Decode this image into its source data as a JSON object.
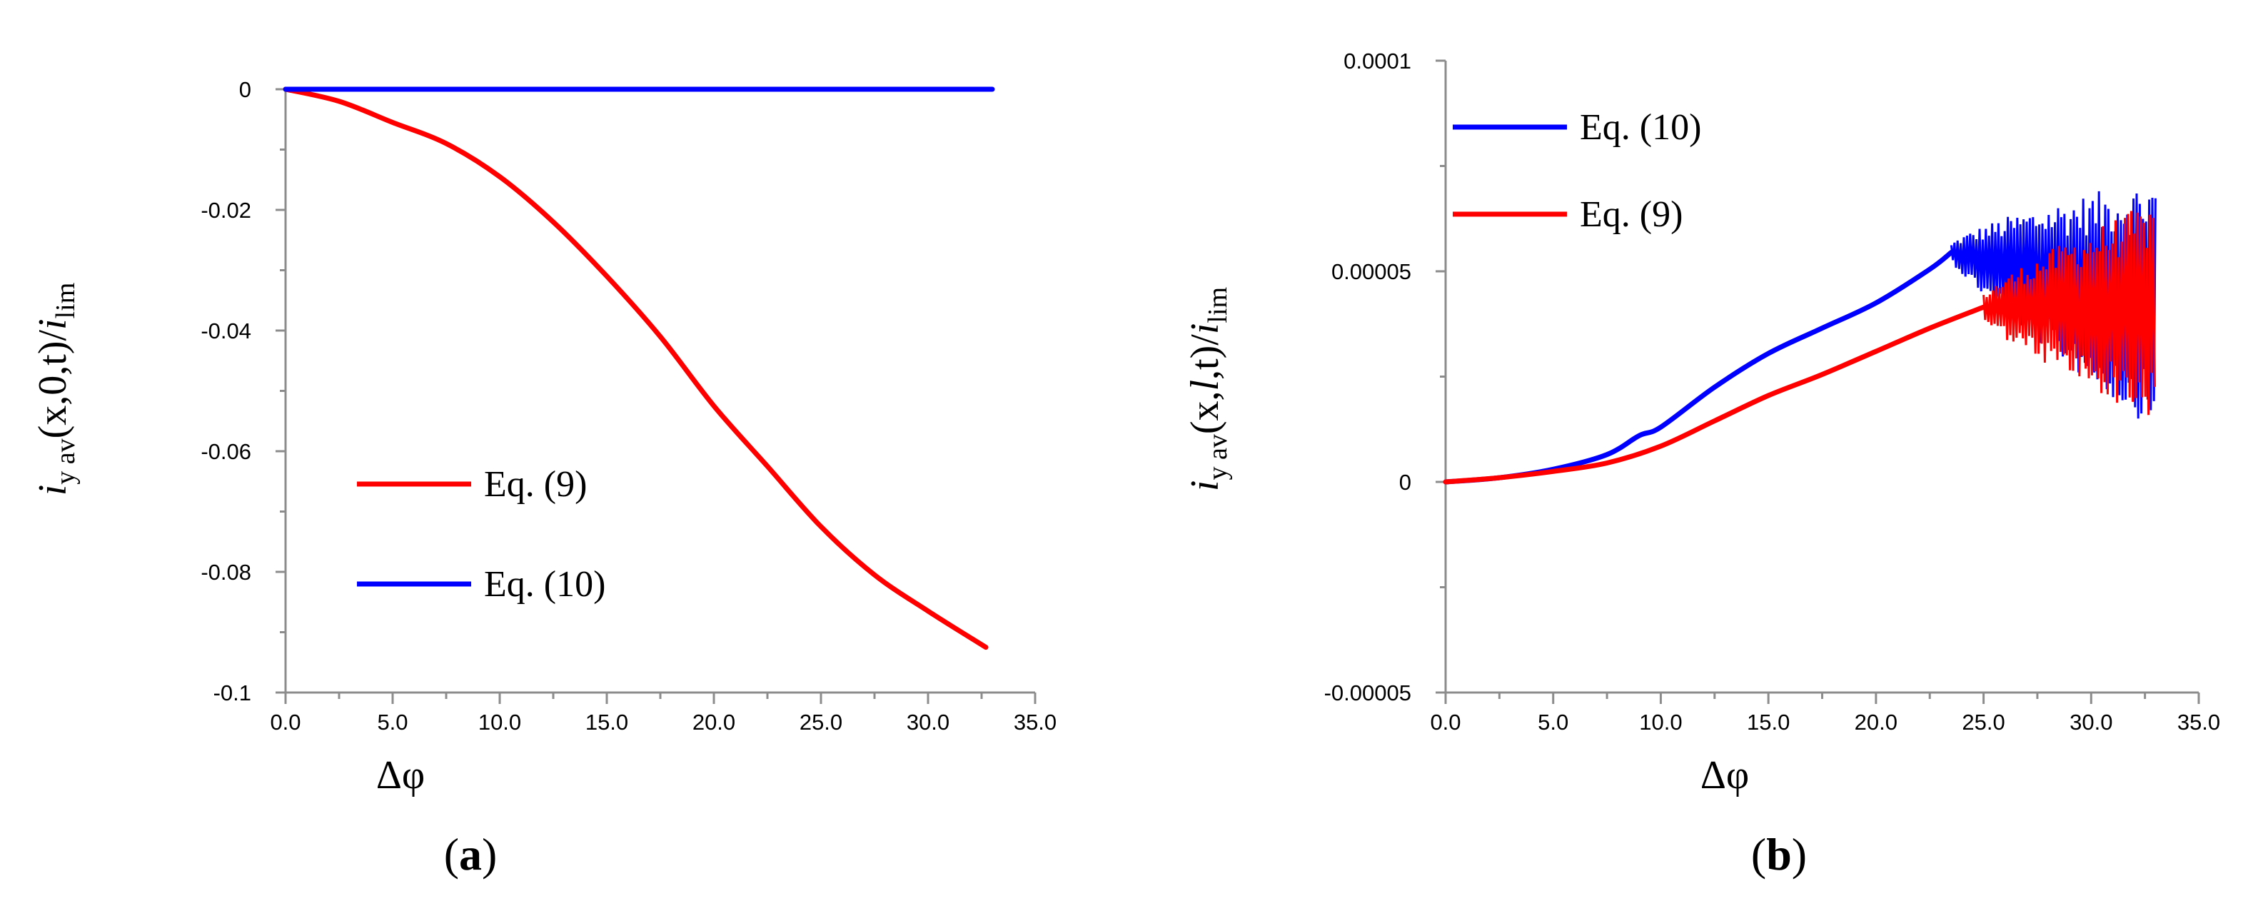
{
  "chart_data": [
    {
      "type": "line",
      "panel_label": "a",
      "xlabel": "Δφ",
      "ylabel": {
        "main": "i",
        "sub": "y av",
        "args": "(x,0,t)/",
        "denom_main": "i",
        "denom_sub": "lim"
      },
      "xlim": [
        0,
        35
      ],
      "ylim": [
        -0.1,
        0
      ],
      "x_ticks": [
        "0.0",
        "5.0",
        "10.0",
        "15.0",
        "20.0",
        "25.0",
        "30.0",
        "35.0"
      ],
      "y_ticks": [
        "0",
        "-0.02",
        "-0.04",
        "-0.06",
        "-0.08",
        "-0.1"
      ],
      "legend": [
        {
          "label": "Eq. (9)",
          "color": "#ff0000"
        },
        {
          "label": "Eq. (10)",
          "color": "#0000ff"
        }
      ],
      "series": [
        {
          "name": "Eq. (9)",
          "color": "#ff0000",
          "x": [
            0,
            2.5,
            5,
            7.5,
            10,
            12.5,
            15,
            17.5,
            20,
            22.5,
            25,
            27.5,
            30,
            32.7
          ],
          "y": [
            0,
            -0.002,
            -0.0055,
            -0.009,
            -0.0145,
            -0.022,
            -0.031,
            -0.041,
            -0.0525,
            -0.0625,
            -0.0725,
            -0.0805,
            -0.0865,
            -0.0925
          ]
        },
        {
          "name": "Eq. (10)",
          "color": "#0000ff",
          "x": [
            0,
            5,
            10,
            15,
            20,
            25,
            30,
            33
          ],
          "y": [
            0,
            0,
            0,
            0,
            0,
            0,
            0,
            0
          ]
        }
      ]
    },
    {
      "type": "line",
      "panel_label": "b",
      "xlabel": "Δφ",
      "ylabel": {
        "main": "i",
        "sub": "y av",
        "args_pre": "(x,",
        "args_ital": "l",
        "args_post": ",t)/",
        "denom_main": "i",
        "denom_sub": "lim"
      },
      "xlim": [
        0,
        35
      ],
      "ylim": [
        -5e-05,
        0.0001
      ],
      "x_ticks": [
        "0.0",
        "5.0",
        "10.0",
        "15.0",
        "20.0",
        "25.0",
        "30.0",
        "35.0"
      ],
      "y_ticks": [
        "0.0001",
        "0.00005",
        "0",
        "-0.00005"
      ],
      "legend": [
        {
          "label": "Eq. (10)",
          "color": "#0000ff"
        },
        {
          "label": "Eq. (9)",
          "color": "#ff0000"
        }
      ],
      "series": [
        {
          "name": "Eq. (10)",
          "color": "#0000ff",
          "x": [
            0,
            2.5,
            5,
            7.5,
            9,
            10,
            12.5,
            15,
            17.5,
            20,
            22.5,
            23.5
          ],
          "y": [
            0,
            1e-06,
            3e-06,
            6.5e-06,
            1.1e-05,
            1.3e-05,
            2.25e-05,
            3.05e-05,
            3.65e-05,
            4.25e-05,
            5.05e-05,
            5.45e-05
          ],
          "oscillation": {
            "x_range": [
              23.5,
              33
            ],
            "center_start": 5.45e-05,
            "center_end": 4.2e-05,
            "amplitude_start": 2e-06,
            "amplitude_end": 3e-05
          }
        },
        {
          "name": "Eq. (9)",
          "color": "#ff0000",
          "x": [
            0,
            2.5,
            5,
            7.5,
            10,
            12.5,
            15,
            17.5,
            20,
            22.5,
            25
          ],
          "y": [
            0,
            1e-06,
            2.5e-06,
            4.5e-06,
            8.5e-06,
            1.45e-05,
            2.05e-05,
            2.55e-05,
            3.1e-05,
            3.65e-05,
            4.15e-05
          ],
          "oscillation": {
            "x_range": [
              25,
              33
            ],
            "center_start": 4.15e-05,
            "center_end": 4.05e-05,
            "amplitude_start": 3e-06,
            "amplitude_end": 2.65e-05
          }
        }
      ]
    }
  ]
}
